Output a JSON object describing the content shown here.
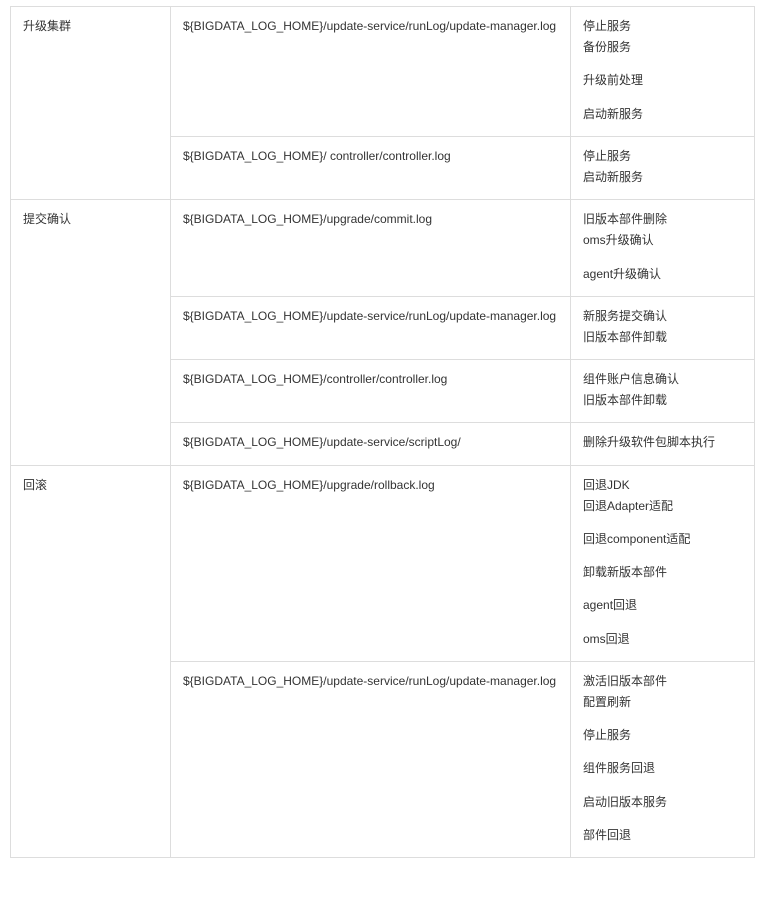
{
  "sections": [
    {
      "name": "升级集群",
      "rows": [
        {
          "path": "${BIGDATA_LOG_HOME}/update-service/runLog/update-manager.log",
          "lines": [
            {
              "text": "停止服务",
              "gap": false
            },
            {
              "text": "备份服务",
              "gap": false
            },
            {
              "text": "升级前处理",
              "gap": true
            },
            {
              "text": "启动新服务",
              "gap": true
            }
          ]
        },
        {
          "path": "${BIGDATA_LOG_HOME}/ controller/controller.log",
          "lines": [
            {
              "text": "停止服务",
              "gap": false
            },
            {
              "text": "启动新服务",
              "gap": false
            }
          ]
        }
      ]
    },
    {
      "name": "提交确认",
      "rows": [
        {
          "path": "${BIGDATA_LOG_HOME}/upgrade/commit.log",
          "lines": [
            {
              "text": "旧版本部件删除",
              "gap": false
            },
            {
              "text": "oms升级确认",
              "gap": false
            },
            {
              "text": "agent升级确认",
              "gap": true
            }
          ]
        },
        {
          "path": "${BIGDATA_LOG_HOME}/update-service/runLog/update-manager.log",
          "lines": [
            {
              "text": "新服务提交确认",
              "gap": false
            },
            {
              "text": "旧版本部件卸载",
              "gap": false
            }
          ]
        },
        {
          "path": "${BIGDATA_LOG_HOME}/controller/controller.log",
          "lines": [
            {
              "text": "组件账户信息确认",
              "gap": false
            },
            {
              "text": "旧版本部件卸载",
              "gap": false
            }
          ]
        },
        {
          "path": "${BIGDATA_LOG_HOME}/update-service/scriptLog/",
          "lines": [
            {
              "text": "删除升级软件包脚本执行",
              "gap": false
            }
          ]
        }
      ]
    },
    {
      "name": "回滚",
      "rows": [
        {
          "path": "${BIGDATA_LOG_HOME}/upgrade/rollback.log",
          "lines": [
            {
              "text": "回退JDK",
              "gap": false
            },
            {
              "text": "回退Adapter适配",
              "gap": false
            },
            {
              "text": "回退component适配",
              "gap": true
            },
            {
              "text": "卸载新版本部件",
              "gap": true
            },
            {
              "text": "agent回退",
              "gap": true
            },
            {
              "text": "oms回退",
              "gap": true
            }
          ]
        },
        {
          "path": "${BIGDATA_LOG_HOME}/update-service/runLog/update-manager.log",
          "lines": [
            {
              "text": "激活旧版本部件",
              "gap": false
            },
            {
              "text": "配置刷新",
              "gap": false
            },
            {
              "text": "停止服务",
              "gap": true
            },
            {
              "text": "组件服务回退",
              "gap": true
            },
            {
              "text": "启动旧版本服务",
              "gap": true
            },
            {
              "text": "部件回退",
              "gap": true
            }
          ]
        }
      ]
    }
  ]
}
